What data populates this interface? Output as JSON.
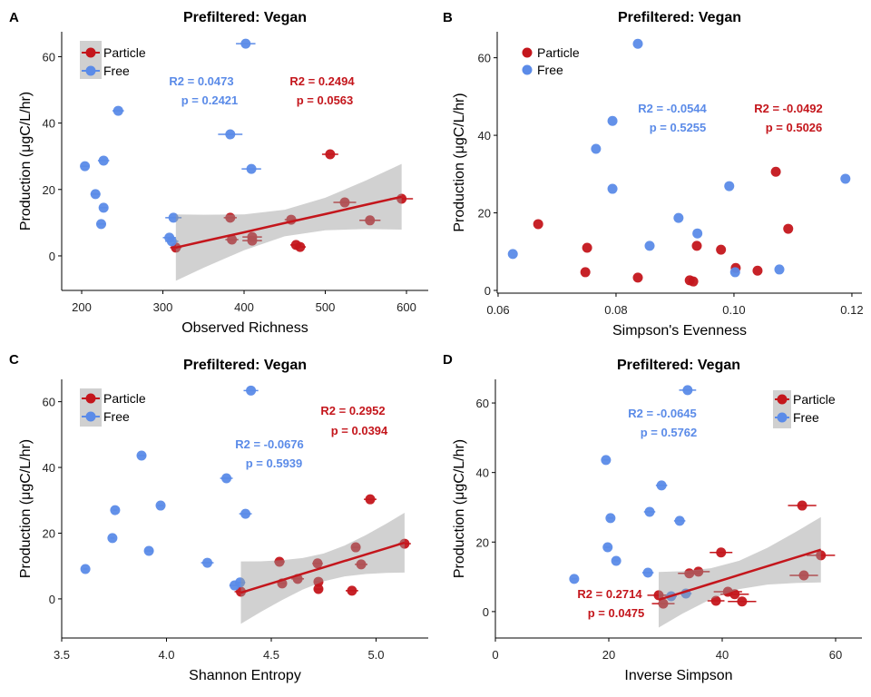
{
  "chart_data": [
    {
      "panel": "A",
      "type": "scatter",
      "title": "Prefiltered: Vegan",
      "xlabel": "Observed Richness",
      "ylabel": "Production (μgC/L/hr)",
      "xlim": [
        175.4,
        626.8
      ],
      "ylim": [
        -10.4,
        67.5
      ],
      "grid": false,
      "xticks": {
        "values": [
          200,
          300,
          400,
          500,
          600
        ],
        "labels": [
          "200",
          "300",
          "400",
          "500",
          "600"
        ]
      },
      "yticks": {
        "values": [
          0,
          20,
          40,
          60
        ],
        "labels": [
          "0",
          "20",
          "40",
          "60"
        ]
      },
      "legend": {
        "placement": "top-left",
        "entries": [
          "Particle",
          "Free"
        ],
        "key_background": true
      },
      "series": [
        {
          "name": "Particle",
          "color": "#C4161C",
          "x": [
            316,
            383,
            385,
            410,
            410,
            458,
            464,
            469,
            506,
            524,
            555,
            594
          ],
          "y": [
            2.5,
            11.5,
            4.9,
            5.7,
            4.6,
            10.9,
            3.3,
            2.7,
            30.6,
            16.1,
            10.7,
            17.2
          ],
          "xerr": [
            7,
            8,
            8,
            12,
            12,
            8,
            7,
            7,
            10,
            14,
            13,
            14
          ]
        },
        {
          "name": "Free",
          "color": "#5B8BE8",
          "x": [
            204,
            217,
            227,
            227,
            224,
            245,
            313,
            308,
            311,
            383,
            409,
            402
          ],
          "y": [
            27.0,
            18.6,
            28.7,
            14.5,
            9.6,
            43.7,
            11.5,
            5.5,
            4.4,
            36.6,
            26.2,
            63.9
          ],
          "xerr": [
            5,
            6,
            7,
            5,
            5,
            7,
            10,
            8,
            8,
            15,
            12,
            12
          ]
        }
      ],
      "fit": {
        "series": "Particle",
        "band_color": "#999999",
        "x": [
          316,
          350,
          400,
          450,
          500,
          550,
          594
        ],
        "y": [
          2.5,
          4.4,
          7.1,
          9.9,
          12.6,
          15.4,
          17.8
        ],
        "lower": [
          -7.5,
          -3.6,
          1.7,
          5.9,
          7.7,
          8.1,
          7.9
        ],
        "upper": [
          12.5,
          12.4,
          12.5,
          13.9,
          17.5,
          22.7,
          27.7
        ]
      },
      "annotations": [
        {
          "series": "Free",
          "r2": "R2 = 0.0473",
          "p": "p = 0.2421"
        },
        {
          "series": "Particle",
          "r2": "R2 = 0.2494",
          "p": "p = 0.0563"
        }
      ]
    },
    {
      "panel": "B",
      "type": "scatter",
      "title": "Prefiltered: Vegan",
      "xlabel": "Simpson's Evenness",
      "ylabel": "Production (μgC/L/hr)",
      "xlim": [
        0.05985,
        0.1217
      ],
      "ylim": [
        -0.7,
        66.7
      ],
      "grid": false,
      "xticks": {
        "values": [
          0.06,
          0.08,
          0.1,
          0.12
        ],
        "labels": [
          "0.06",
          "0.08",
          "0.10",
          "0.12"
        ]
      },
      "yticks": {
        "values": [
          0,
          20,
          40,
          60
        ],
        "labels": [
          "0",
          "20",
          "40",
          "60"
        ]
      },
      "legend": {
        "placement": "top-left",
        "entries": [
          "Particle",
          "Free"
        ],
        "key_background": false
      },
      "series": [
        {
          "name": "Particle",
          "color": "#C4161C",
          "x": [
            0.0668,
            0.0748,
            0.0751,
            0.0837,
            0.0925,
            0.0931,
            0.0937,
            0.0978,
            0.1003,
            0.104,
            0.1071,
            0.1092
          ],
          "y": [
            17.1,
            4.7,
            11.0,
            3.3,
            2.6,
            2.3,
            11.5,
            10.5,
            5.8,
            5.1,
            30.6,
            15.9
          ]
        },
        {
          "name": "Free",
          "color": "#5B8BE8",
          "x": [
            0.0625,
            0.0766,
            0.0794,
            0.0794,
            0.0837,
            0.0857,
            0.0906,
            0.0938,
            0.0992,
            0.1002,
            0.1077,
            0.1189
          ],
          "y": [
            9.4,
            36.5,
            26.2,
            43.7,
            63.6,
            11.5,
            18.7,
            14.7,
            26.9,
            4.7,
            5.4,
            28.8
          ]
        }
      ],
      "annotations": [
        {
          "series": "Free",
          "r2": "R2 = -0.0544",
          "p": "p = 0.5255"
        },
        {
          "series": "Particle",
          "r2": "R2 = -0.0492",
          "p": "p = 0.5026"
        }
      ]
    },
    {
      "panel": "C",
      "type": "scatter",
      "title": "Prefiltered: Vegan",
      "xlabel": "Shannon Entropy",
      "ylabel": "Production (μgC/L/hr)",
      "xlim": [
        3.5,
        5.249
      ],
      "ylim": [
        -11.9,
        66.8
      ],
      "grid": false,
      "xticks": {
        "values": [
          3.5,
          4.0,
          4.5,
          5.0
        ],
        "labels": [
          "3.5",
          "4.0",
          "4.5",
          "5.0"
        ]
      },
      "yticks": {
        "values": [
          0,
          20,
          40,
          60
        ],
        "labels": [
          "0",
          "20",
          "40",
          "60"
        ]
      },
      "legend": {
        "placement": "top-left",
        "entries": [
          "Particle",
          "Free"
        ],
        "key_background": true
      },
      "series": [
        {
          "name": "Particle",
          "color": "#C4161C",
          "x": [
            4.355,
            4.539,
            4.552,
            4.626,
            4.721,
            4.725,
            4.725,
            4.885,
            4.903,
            4.929,
            4.972,
            5.136
          ],
          "y": [
            2.2,
            11.3,
            4.7,
            6.1,
            10.8,
            5.2,
            3.0,
            2.5,
            15.7,
            10.5,
            30.3,
            16.8
          ],
          "xerr": [
            0.03,
            0.025,
            0.02,
            0.03,
            0.025,
            0.02,
            0.02,
            0.03,
            0.02,
            0.03,
            0.03,
            0.03
          ]
        },
        {
          "name": "Free",
          "color": "#5B8BE8",
          "x": [
            3.613,
            3.742,
            3.755,
            3.881,
            3.916,
            3.972,
            4.195,
            4.286,
            4.325,
            4.351,
            4.377,
            4.403
          ],
          "y": [
            9.1,
            18.5,
            27.0,
            43.6,
            14.6,
            28.4,
            11.0,
            36.7,
            4.1,
            5.0,
            25.9,
            63.4
          ],
          "xerr": [
            0.01,
            0.01,
            0.01,
            0.02,
            0.02,
            0.015,
            0.03,
            0.03,
            0.025,
            0.025,
            0.03,
            0.035
          ]
        }
      ],
      "fit": {
        "series": "Particle",
        "band_color": "#999999",
        "x": [
          4.355,
          4.45,
          4.55,
          4.65,
          4.75,
          4.85,
          4.95,
          5.05,
          5.136
        ],
        "y": [
          1.9,
          3.75,
          5.69,
          7.64,
          9.59,
          11.54,
          13.48,
          15.42,
          17.1
        ],
        "lower": [
          -7.6,
          -3.95,
          -0.41,
          2.84,
          5.35,
          6.84,
          7.58,
          7.92,
          8.0
        ],
        "upper": [
          11.4,
          11.45,
          11.79,
          12.44,
          13.83,
          16.24,
          19.38,
          22.92,
          26.2
        ]
      },
      "annotations": [
        {
          "series": "Particle",
          "r2": "R2 = 0.2952",
          "p": "p = 0.0394"
        },
        {
          "series": "Free",
          "r2": "R2 = -0.0676",
          "p": "p = 0.5939"
        }
      ]
    },
    {
      "panel": "D",
      "type": "scatter",
      "title": "Prefiltered: Vegan",
      "xlabel": "Inverse Simpson",
      "ylabel": "Production (μgC/L/hr)",
      "xlim": [
        0,
        64.64
      ],
      "ylim": [
        -7.6,
        66.8
      ],
      "grid": false,
      "xticks": {
        "values": [
          0,
          20,
          40,
          60
        ],
        "labels": [
          "0",
          "20",
          "40",
          "60"
        ]
      },
      "yticks": {
        "values": [
          0,
          20,
          40,
          60
        ],
        "labels": [
          "0",
          "20",
          "40",
          "60"
        ]
      },
      "legend": {
        "placement": "top-right",
        "entries": [
          "Particle",
          "Free"
        ],
        "key_background": true
      },
      "series": [
        {
          "name": "Particle",
          "color": "#C4161C",
          "x": [
            28.8,
            29.6,
            34.2,
            35.8,
            38.9,
            39.8,
            41.0,
            42.2,
            43.5,
            54.1,
            54.4,
            57.4
          ],
          "y": [
            4.7,
            2.3,
            11.0,
            11.5,
            3.1,
            17.0,
            5.7,
            5.0,
            2.9,
            30.5,
            10.4,
            16.2
          ],
          "xerr": [
            2,
            2,
            2,
            2,
            1.5,
            2,
            2.5,
            2.5,
            2.5,
            2.5,
            2.5,
            2.5
          ]
        },
        {
          "name": "Free",
          "color": "#5B8BE8",
          "x": [
            13.9,
            19.5,
            19.8,
            20.3,
            21.3,
            26.9,
            27.2,
            29.3,
            31.0,
            32.5,
            33.6,
            33.9
          ],
          "y": [
            9.4,
            43.6,
            18.5,
            26.9,
            14.6,
            11.2,
            28.7,
            36.3,
            4.4,
            26.1,
            5.2,
            63.7
          ],
          "xerr": [
            0.5,
            0.5,
            0.5,
            0.5,
            0.5,
            1,
            1,
            1,
            1,
            1,
            1,
            1.5
          ]
        }
      ],
      "fit": {
        "series": "Particle",
        "band_color": "#999999",
        "x": [
          28.8,
          33,
          38,
          43,
          48,
          53,
          57.4
        ],
        "y": [
          3.4,
          5.51,
          8.03,
          10.55,
          13.07,
          15.58,
          17.8
        ],
        "lower": [
          -4.6,
          -0.59,
          3.58,
          6.48,
          7.77,
          8.23,
          8.4
        ],
        "upper": [
          11.4,
          11.61,
          12.48,
          14.62,
          18.37,
          22.93,
          27.2
        ]
      },
      "annotations": [
        {
          "series": "Free",
          "r2": "R2 = -0.0645",
          "p": "p = 0.5762"
        },
        {
          "series": "Particle",
          "r2": "R2 = 0.2714",
          "p": "p = 0.0475"
        }
      ]
    }
  ]
}
